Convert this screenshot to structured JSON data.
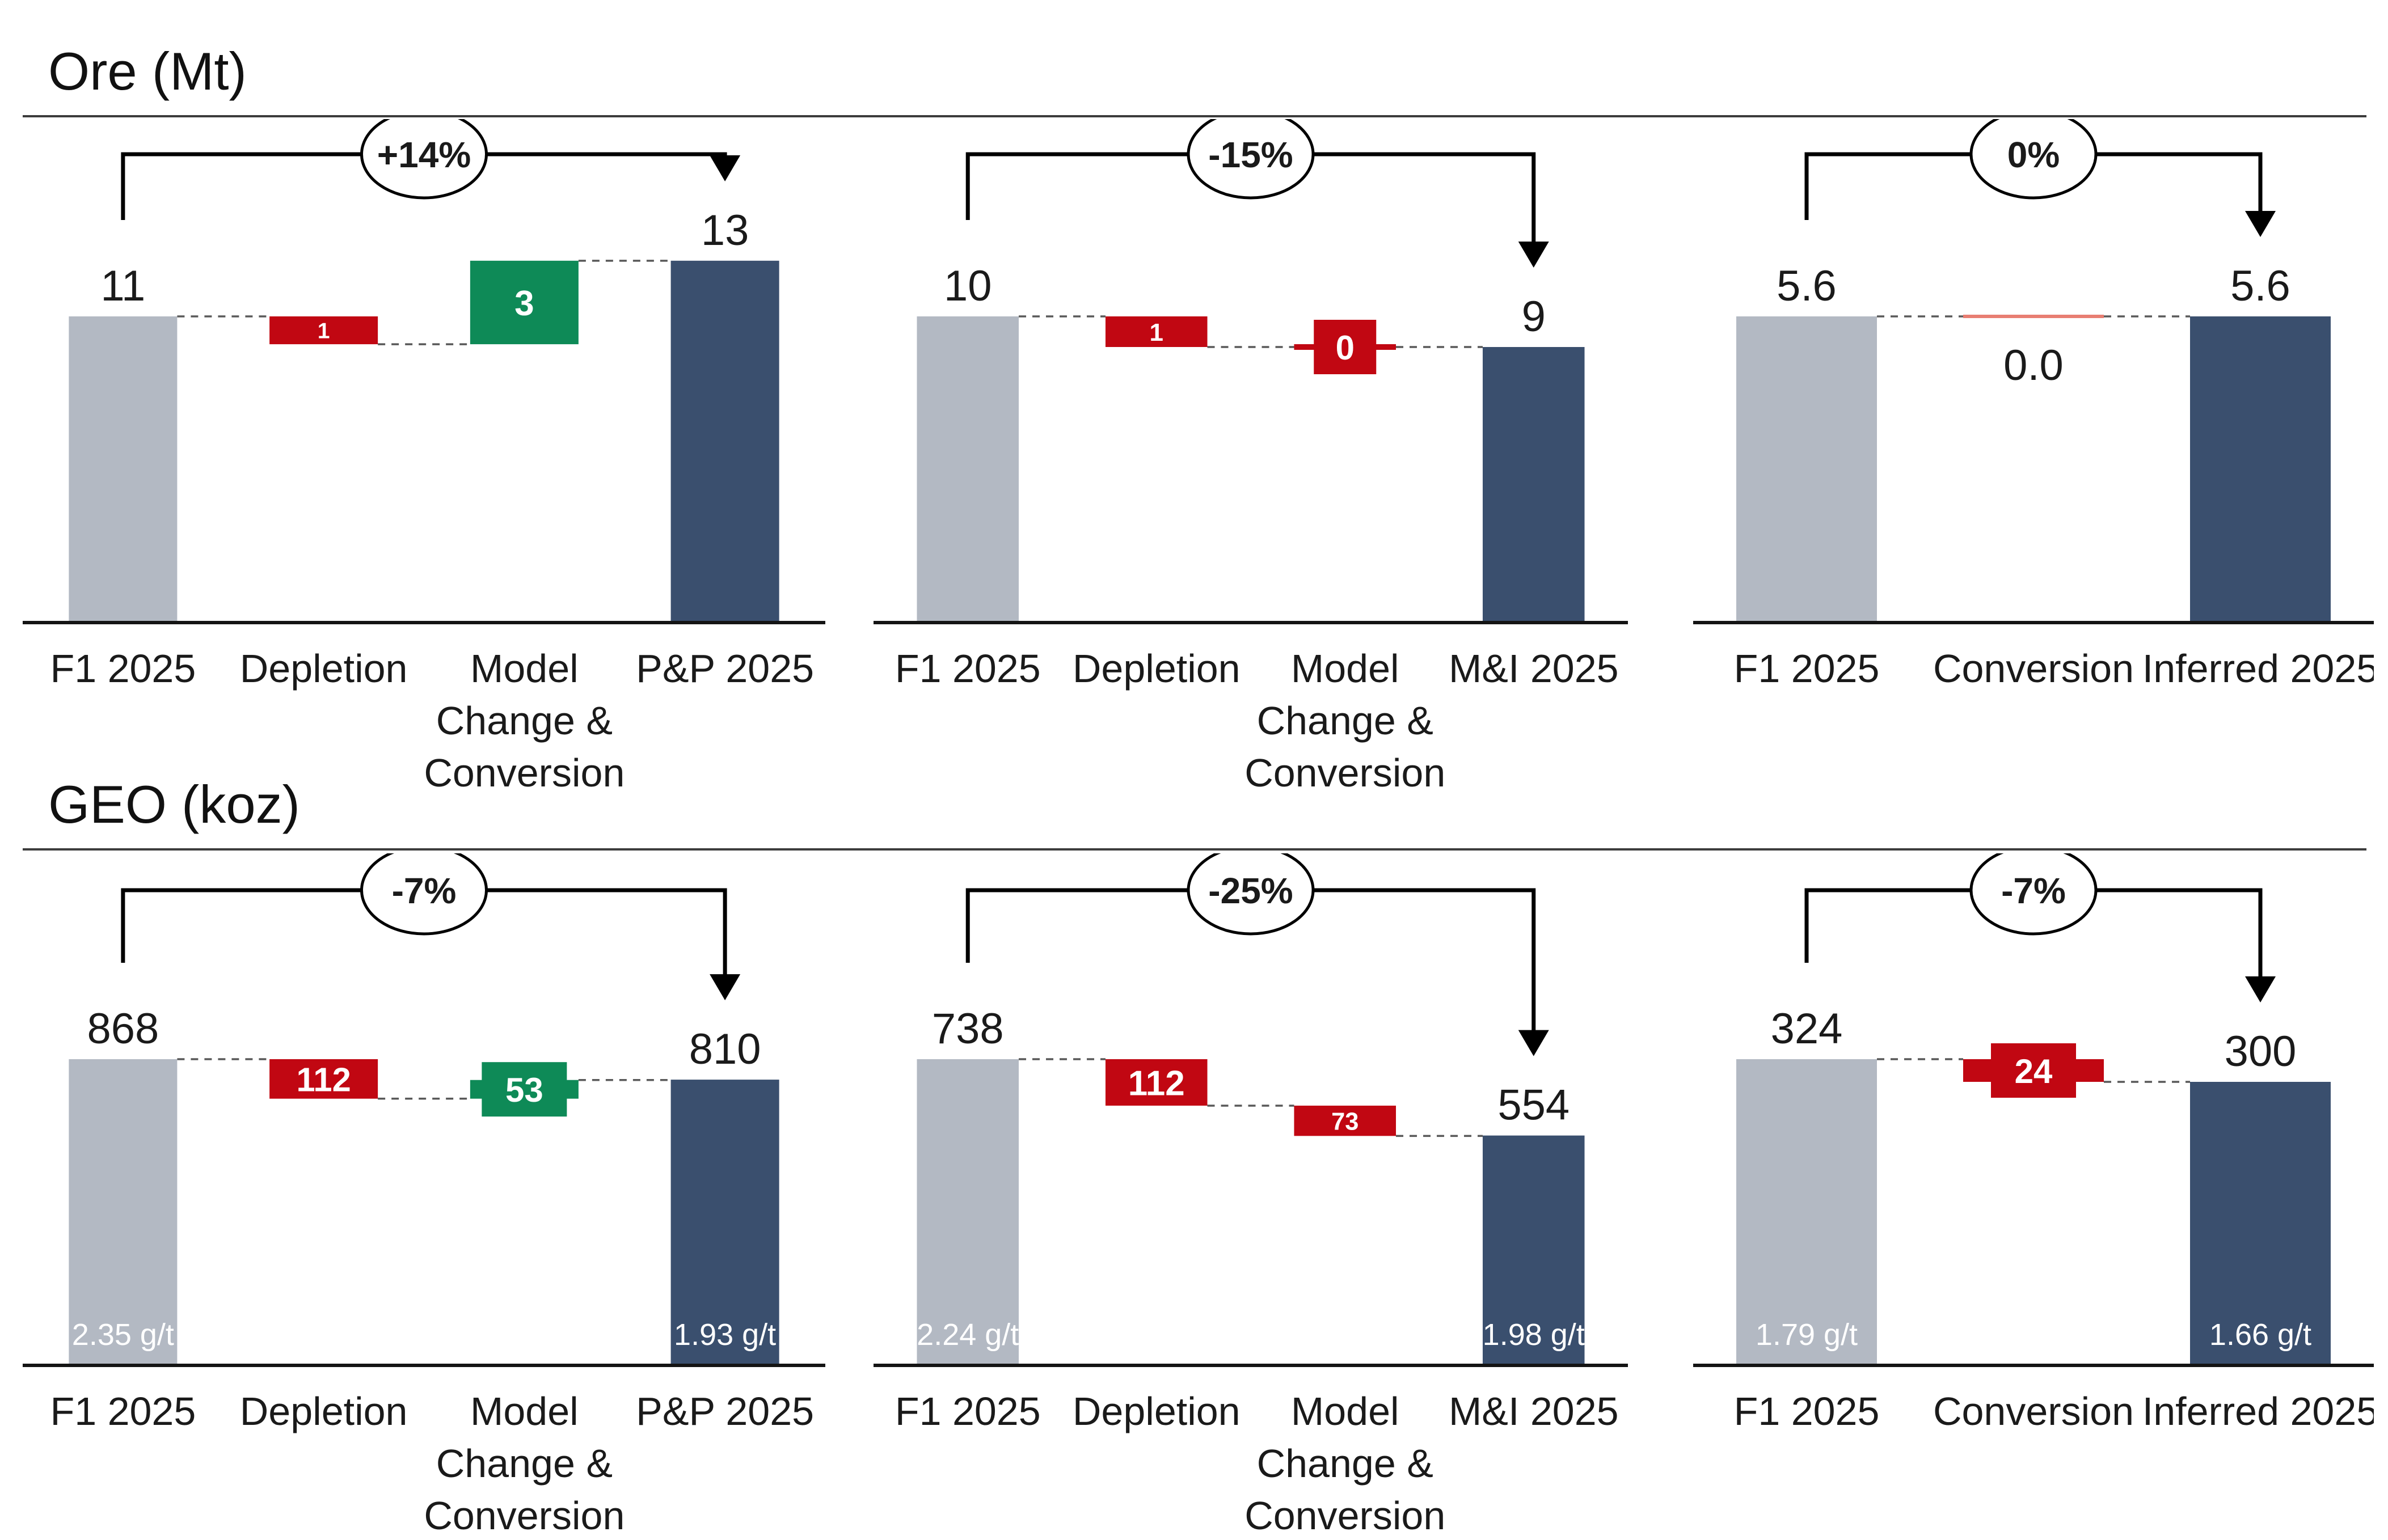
{
  "sections": [
    {
      "title": "Ore (Mt)"
    },
    {
      "title": "GEO (koz)"
    }
  ],
  "colors": {
    "base": "#b3b9c3",
    "total": "#3a4f6e",
    "decrease": "#c10712",
    "increase": "#0e8a57",
    "zero_line": "#e87e72",
    "connector": "#595959",
    "axis": "#141414",
    "bracket": "#000000",
    "text": "#1a1a1a",
    "bar_label": "#ffffff"
  },
  "chart_data": [
    {
      "type": "bar",
      "subtype": "waterfall",
      "section": 0,
      "name": "ore-pp-2025",
      "badge": "+14%",
      "steps": [
        {
          "category": "F1 2025",
          "category_lines": [
            "F1 2025"
          ],
          "role": "base",
          "value": 11,
          "label": "11"
        },
        {
          "category": "Depletion",
          "category_lines": [
            "Depletion"
          ],
          "role": "decrease",
          "value": 1,
          "label": "1"
        },
        {
          "category": "Model Change & Conversion",
          "category_lines": [
            "Model",
            "Change &",
            "Conversion"
          ],
          "role": "increase",
          "value": 3,
          "label": "3"
        },
        {
          "category": "P&P 2025",
          "category_lines": [
            "P&P 2025"
          ],
          "role": "total",
          "value": 13,
          "label": "13"
        }
      ]
    },
    {
      "type": "bar",
      "subtype": "waterfall",
      "section": 0,
      "name": "ore-mi-2025",
      "badge": "-15%",
      "steps": [
        {
          "category": "F1 2025",
          "category_lines": [
            "F1 2025"
          ],
          "role": "base",
          "value": 10,
          "label": "10"
        },
        {
          "category": "Depletion",
          "category_lines": [
            "Depletion"
          ],
          "role": "decrease",
          "value": 1,
          "label": "1"
        },
        {
          "category": "Model Change & Conversion",
          "category_lines": [
            "Model",
            "Change &",
            "Conversion"
          ],
          "role": "decrease",
          "value": 0,
          "label": "0",
          "zero_style": "box"
        },
        {
          "category": "M&I 2025",
          "category_lines": [
            "M&I 2025"
          ],
          "role": "total",
          "value": 9,
          "label": "9"
        }
      ]
    },
    {
      "type": "bar",
      "subtype": "waterfall",
      "section": 0,
      "name": "ore-inferred-2025",
      "badge": "0%",
      "steps": [
        {
          "category": "F1 2025",
          "category_lines": [
            "F1 2025"
          ],
          "role": "base",
          "value": 5.6,
          "label": "5.6"
        },
        {
          "category": "Conversion",
          "category_lines": [
            "Conversion"
          ],
          "role": "flat",
          "value": 0,
          "label": "0.0",
          "zero_style": "line"
        },
        {
          "category": "Inferred 2025",
          "category_lines": [
            "Inferred 2025"
          ],
          "role": "total",
          "value": 5.6,
          "label": "5.6"
        }
      ]
    },
    {
      "type": "bar",
      "subtype": "waterfall",
      "section": 1,
      "name": "geo-pp-2025",
      "badge": "-7%",
      "steps": [
        {
          "category": "F1 2025",
          "category_lines": [
            "F1 2025"
          ],
          "role": "base",
          "value": 868,
          "label": "868",
          "sublabel": "2.35 g/t"
        },
        {
          "category": "Depletion",
          "category_lines": [
            "Depletion"
          ],
          "role": "decrease",
          "value": 112,
          "label": "112"
        },
        {
          "category": "Model Change & Conversion",
          "category_lines": [
            "Model",
            "Change &",
            "Conversion"
          ],
          "role": "increase",
          "value": 53,
          "label": "53"
        },
        {
          "category": "P&P 2025",
          "category_lines": [
            "P&P 2025"
          ],
          "role": "total",
          "value": 810,
          "label": "810",
          "sublabel": "1.93 g/t"
        }
      ]
    },
    {
      "type": "bar",
      "subtype": "waterfall",
      "section": 1,
      "name": "geo-mi-2025",
      "badge": "-25%",
      "steps": [
        {
          "category": "F1 2025",
          "category_lines": [
            "F1 2025"
          ],
          "role": "base",
          "value": 738,
          "label": "738",
          "sublabel": "2.24 g/t"
        },
        {
          "category": "Depletion",
          "category_lines": [
            "Depletion"
          ],
          "role": "decrease",
          "value": 112,
          "label": "112"
        },
        {
          "category": "Model Change & Conversion",
          "category_lines": [
            "Model",
            "Change &",
            "Conversion"
          ],
          "role": "decrease",
          "value": 73,
          "label": "73"
        },
        {
          "category": "M&I 2025",
          "category_lines": [
            "M&I 2025"
          ],
          "role": "total",
          "value": 554,
          "label": "554",
          "sublabel": "1.98 g/t"
        }
      ]
    },
    {
      "type": "bar",
      "subtype": "waterfall",
      "section": 1,
      "name": "geo-inferred-2025",
      "badge": "-7%",
      "steps": [
        {
          "category": "F1 2025",
          "category_lines": [
            "F1 2025"
          ],
          "role": "base",
          "value": 324,
          "label": "324",
          "sublabel": "1.79 g/t"
        },
        {
          "category": "Conversion",
          "category_lines": [
            "Conversion"
          ],
          "role": "decrease",
          "value": 24,
          "label": "24"
        },
        {
          "category": "Inferred 2025",
          "category_lines": [
            "Inferred 2025"
          ],
          "role": "total",
          "value": 300,
          "label": "300",
          "sublabel": "1.66 g/t"
        }
      ]
    }
  ]
}
